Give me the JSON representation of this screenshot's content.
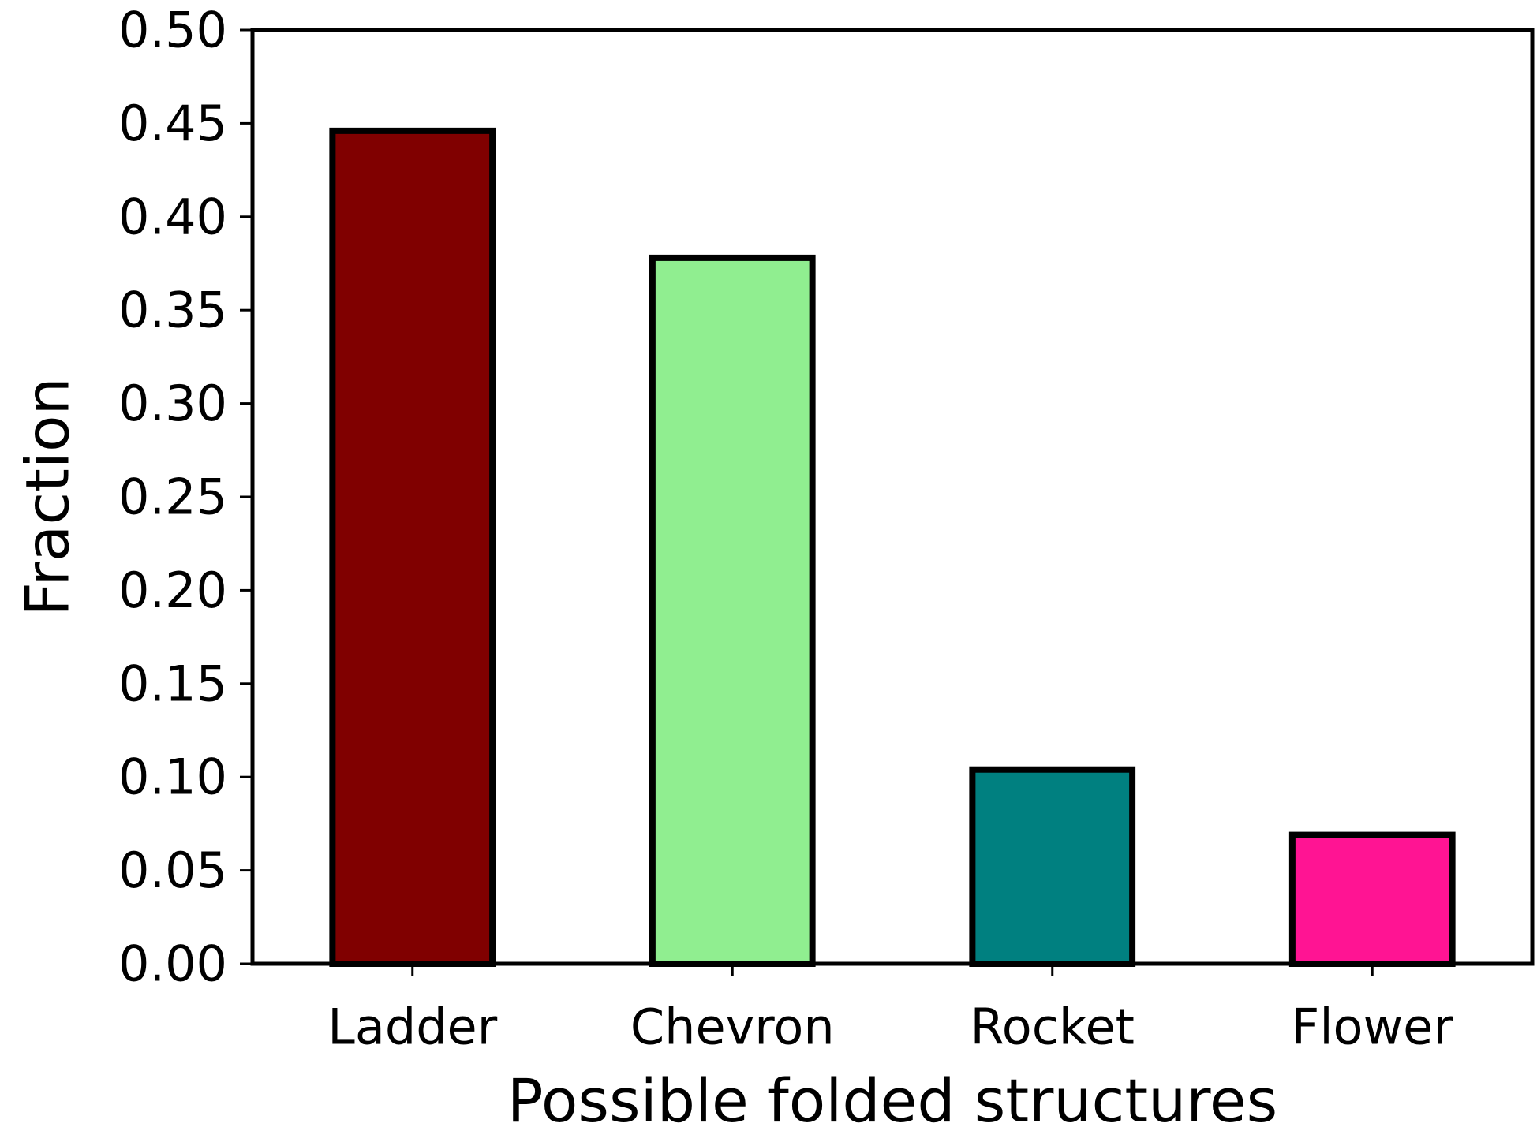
{
  "chart_data": {
    "type": "bar",
    "categories": [
      "Ladder",
      "Chevron",
      "Rocket",
      "Flower"
    ],
    "values": [
      0.446,
      0.378,
      0.104,
      0.069
    ],
    "colors": [
      "#800000",
      "#90ee90",
      "#008080",
      "#ff1493"
    ],
    "edge_color": "#000000",
    "title": "",
    "xlabel": "Possible folded structures",
    "ylabel": "Fraction",
    "ylim": [
      0,
      0.5
    ],
    "yticks": [
      "0.00",
      "0.05",
      "0.10",
      "0.15",
      "0.20",
      "0.25",
      "0.30",
      "0.35",
      "0.40",
      "0.45",
      "0.50"
    ],
    "grid": false,
    "legend": "none"
  }
}
